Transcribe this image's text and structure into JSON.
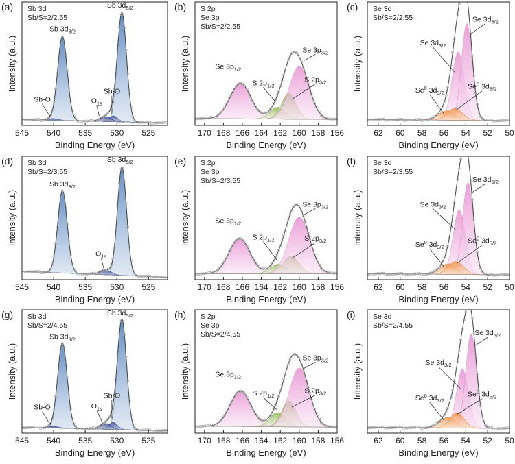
{
  "figure": {
    "description_free": true
  },
  "chart_data": [
    {
      "panel": "(a)",
      "type": "line",
      "element": "Sb 3d",
      "ratio": "Sb/S=2/2.55",
      "xlabel": "Binding Energy (eV)",
      "ylabel": "Intensity (a.u.)",
      "xlim": [
        545,
        522
      ],
      "ylim": [
        0,
        1.0
      ],
      "xticks": [
        545,
        540,
        535,
        530,
        525
      ],
      "series": [
        {
          "name": "Sb 3d3/2",
          "color": "#3f74b8",
          "peaks": [
            {
              "center": 538.6,
              "height": 0.71,
              "width": 0.75
            }
          ]
        },
        {
          "name": "Sb 3d5/2",
          "color": "#3f74b8",
          "peaks": [
            {
              "center": 529.2,
              "height": 0.92,
              "width": 0.72
            }
          ]
        },
        {
          "name": "Sb-O",
          "color": "#2a3b8a",
          "peaks": [
            {
              "center": 540.0,
              "height": 0.015,
              "width": 0.8
            },
            {
              "center": 530.6,
              "height": 0.05,
              "width": 0.7
            }
          ]
        },
        {
          "name": "O1s",
          "color": "#2a3b8a",
          "peaks": [
            {
              "center": 531.8,
              "height": 0.04,
              "width": 0.9
            }
          ]
        }
      ],
      "baseline": [
        0.05,
        0.02
      ],
      "annotations": [
        {
          "text": "Sb 3d",
          "sub": "3/2",
          "x": 538.6,
          "y": 0.8,
          "ax": 538.6,
          "ay": 0.8
        },
        {
          "text": "Sb 3d",
          "sub": "5/2",
          "x": 529.5,
          "y": 1.0,
          "ax": 529.5,
          "ay": 1.0
        },
        {
          "text": "Sb-O",
          "sub": "",
          "x": 541.8,
          "y": 0.2,
          "ax": 540.5,
          "ay": 0.07
        },
        {
          "text": "Sb-O",
          "sub": "",
          "x": 530.8,
          "y": 0.27,
          "ax": 530.8,
          "ay": 0.1
        },
        {
          "text": "O",
          "sub": "1s",
          "x": 533.2,
          "y": 0.19,
          "ax": 532.8,
          "ay": 0.08
        }
      ]
    },
    {
      "panel": "(b)",
      "type": "line",
      "element": "S 2p",
      "element2": "Se 3p",
      "ratio": "Sb/S=2/2.55",
      "xlabel": "Binding Energy (eV)",
      "ylabel": "Intensity (a.u.)",
      "xlim": [
        171,
        156
      ],
      "ylim": [
        0,
        1.0
      ],
      "xticks": [
        170,
        168,
        166,
        164,
        162,
        160,
        158,
        156
      ],
      "series": [
        {
          "name": "Se 3p1/2",
          "color": "#e58bcf",
          "peaks": [
            {
              "center": 166.2,
              "height": 0.3,
              "width": 1.1
            }
          ]
        },
        {
          "name": "S 2p1/2",
          "color": "#8ab04a",
          "peaks": [
            {
              "center": 162.3,
              "height": 0.1,
              "width": 0.8
            }
          ]
        },
        {
          "name": "S 2p3/2",
          "color": "#8ab04a",
          "peaks": [
            {
              "center": 161.1,
              "height": 0.22,
              "width": 0.75
            }
          ]
        },
        {
          "name": "Se 3p3/2",
          "color": "#e58bcf",
          "peaks": [
            {
              "center": 160.0,
              "height": 0.45,
              "width": 1.05
            }
          ]
        }
      ],
      "baseline": [
        0.06,
        0.05
      ],
      "annotations": [
        {
          "text": "Se 3p",
          "sub": "1/2",
          "x": 167.5,
          "y": 0.48,
          "ax": 167.5,
          "ay": 0.48
        },
        {
          "text": "Se 3p",
          "sub": "3/2",
          "x": 158.3,
          "y": 0.62,
          "ax": 159.5,
          "ay": 0.55
        },
        {
          "text": "S 2p",
          "sub": "1/2",
          "x": 163.8,
          "y": 0.34,
          "ax": 162.5,
          "ay": 0.2
        },
        {
          "text": "S 2p",
          "sub": "3/2",
          "x": 158.3,
          "y": 0.37,
          "ax": 160.8,
          "ay": 0.22
        }
      ]
    },
    {
      "panel": "(c)",
      "type": "line",
      "element": "Se 3d",
      "ratio": "Sb/S=2/2.55",
      "xlabel": "Binding Energy (eV)",
      "ylabel": "Intensity (a.u.)",
      "xlim": [
        63,
        50
      ],
      "ylim": [
        0,
        1.0
      ],
      "xticks": [
        62,
        60,
        58,
        56,
        54,
        52,
        50
      ],
      "series": [
        {
          "name": "Se 3d3/2",
          "color": "#e58bcf",
          "peaks": [
            {
              "center": 54.7,
              "height": 0.58,
              "width": 0.55
            }
          ]
        },
        {
          "name": "Se 3d5/2",
          "color": "#e58bcf",
          "peaks": [
            {
              "center": 53.9,
              "height": 0.82,
              "width": 0.5
            }
          ]
        },
        {
          "name": "Se0 3d3/2",
          "color": "#f08a3a",
          "peaks": [
            {
              "center": 55.7,
              "height": 0.08,
              "width": 0.75
            }
          ]
        },
        {
          "name": "Se0 3d5/2",
          "color": "#f08a3a",
          "peaks": [
            {
              "center": 55.0,
              "height": 0.1,
              "width": 0.7
            }
          ]
        }
      ],
      "baseline": [
        0.05,
        0.04
      ],
      "annotations": [
        {
          "text": "Se 3d",
          "sub": "3/2",
          "x": 57.0,
          "y": 0.68,
          "ax": 55.0,
          "ay": 0.45
        },
        {
          "text": "Se 3d",
          "sub": "5/2",
          "x": 52.2,
          "y": 0.88,
          "ax": 53.5,
          "ay": 0.78
        },
        {
          "text": "Se",
          "sup": "0",
          "sub": "3/2",
          "mid": " 3d",
          "x": 57.3,
          "y": 0.28,
          "ax": 56.0,
          "ay": 0.1
        },
        {
          "text": "Se",
          "sup": "0",
          "sub": "5/2",
          "mid": " 3d",
          "x": 52.5,
          "y": 0.31,
          "ax": 54.9,
          "ay": 0.13
        }
      ]
    },
    {
      "panel": "(d)",
      "type": "line",
      "element": "Sb 3d",
      "ratio": "Sb/S=2/3.55",
      "xlabel": "Binding Energy (eV)",
      "ylabel": "Intensity (a.u.)",
      "xlim": [
        545,
        522
      ],
      "ylim": [
        0,
        1.0
      ],
      "xticks": [
        545,
        540,
        535,
        530,
        525
      ],
      "series": [
        {
          "name": "Sb 3d3/2",
          "color": "#3f74b8",
          "peaks": [
            {
              "center": 538.6,
              "height": 0.7,
              "width": 0.75
            }
          ]
        },
        {
          "name": "Sb 3d5/2",
          "color": "#3f74b8",
          "peaks": [
            {
              "center": 529.2,
              "height": 0.92,
              "width": 0.72
            }
          ]
        },
        {
          "name": "O1s",
          "color": "#2a3b8a",
          "peaks": [
            {
              "center": 531.8,
              "height": 0.04,
              "width": 0.9
            }
          ]
        }
      ],
      "baseline": [
        0.07,
        0.02
      ],
      "annotations": [
        {
          "text": "Sb 3d",
          "sub": "3/2",
          "x": 538.6,
          "y": 0.79,
          "ax": 538.6,
          "ay": 0.79
        },
        {
          "text": "Sb 3d",
          "sub": "5/2",
          "x": 529.5,
          "y": 1.0,
          "ax": 529.5,
          "ay": 1.0
        },
        {
          "text": "O",
          "sub": "1s",
          "x": 532.5,
          "y": 0.2,
          "ax": 532.0,
          "ay": 0.08
        }
      ]
    },
    {
      "panel": "(e)",
      "type": "line",
      "element": "S 2p",
      "element2": "Se 3p",
      "ratio": "Sb/S=2/3.55",
      "xlabel": "Binding Energy (eV)",
      "ylabel": "Intensity (a.u.)",
      "xlim": [
        171,
        156
      ],
      "ylim": [
        0,
        1.0
      ],
      "xticks": [
        170,
        168,
        166,
        164,
        162,
        160,
        158,
        156
      ],
      "series": [
        {
          "name": "Se 3p1/2",
          "color": "#e58bcf",
          "peaks": [
            {
              "center": 166.3,
              "height": 0.3,
              "width": 1.1
            }
          ]
        },
        {
          "name": "S 2p1/2",
          "color": "#8ab04a",
          "peaks": [
            {
              "center": 162.2,
              "height": 0.08,
              "width": 0.85
            }
          ]
        },
        {
          "name": "S 2p3/2",
          "color": "#8ab04a",
          "peaks": [
            {
              "center": 160.9,
              "height": 0.15,
              "width": 0.85
            }
          ]
        },
        {
          "name": "Se 3p3/2",
          "color": "#e58bcf",
          "peaks": [
            {
              "center": 160.0,
              "height": 0.48,
              "width": 1.1
            }
          ]
        }
      ],
      "baseline": [
        0.05,
        0.05
      ],
      "annotations": [
        {
          "text": "Se 3p",
          "sub": "1/2",
          "x": 167.5,
          "y": 0.48,
          "ax": 167.5,
          "ay": 0.48
        },
        {
          "text": "Se 3p",
          "sub": "3/2",
          "x": 158.3,
          "y": 0.62,
          "ax": 159.5,
          "ay": 0.55
        },
        {
          "text": "S 2p",
          "sub": "1/2",
          "x": 163.8,
          "y": 0.34,
          "ax": 162.3,
          "ay": 0.16
        },
        {
          "text": "S 2p",
          "sub": "3/2",
          "x": 158.3,
          "y": 0.33,
          "ax": 160.8,
          "ay": 0.18
        }
      ]
    },
    {
      "panel": "(f)",
      "type": "line",
      "element": "Se 3d",
      "ratio": "Sb/S=2/3.55",
      "xlabel": "Binding Energy (eV)",
      "ylabel": "Intensity (a.u.)",
      "xlim": [
        63,
        50
      ],
      "ylim": [
        0,
        1.0
      ],
      "xticks": [
        62,
        60,
        58,
        56,
        54,
        52,
        50
      ],
      "series": [
        {
          "name": "Se 3d3/2",
          "color": "#e58bcf",
          "peaks": [
            {
              "center": 54.6,
              "height": 0.55,
              "width": 0.55
            }
          ]
        },
        {
          "name": "Se 3d5/2",
          "color": "#e58bcf",
          "peaks": [
            {
              "center": 53.8,
              "height": 0.78,
              "width": 0.5
            }
          ]
        },
        {
          "name": "Se0 3d3/2",
          "color": "#f08a3a",
          "peaks": [
            {
              "center": 55.6,
              "height": 0.09,
              "width": 0.75
            }
          ]
        },
        {
          "name": "Se0 3d5/2",
          "color": "#f08a3a",
          "peaks": [
            {
              "center": 54.9,
              "height": 0.11,
              "width": 0.7
            }
          ]
        }
      ],
      "baseline": [
        0.05,
        0.04
      ],
      "annotations": [
        {
          "text": "Se 3d",
          "sub": "3/2",
          "x": 57.0,
          "y": 0.62,
          "ax": 54.9,
          "ay": 0.42
        },
        {
          "text": "Se 3d",
          "sub": "5/2",
          "x": 52.2,
          "y": 0.83,
          "ax": 53.4,
          "ay": 0.74
        },
        {
          "text": "Se",
          "sup": "0",
          "sub": "3/2",
          "mid": " 3d",
          "x": 57.3,
          "y": 0.28,
          "ax": 56.0,
          "ay": 0.11
        },
        {
          "text": "Se",
          "sup": "0",
          "sub": "5/2",
          "mid": " 3d",
          "x": 52.5,
          "y": 0.31,
          "ax": 54.8,
          "ay": 0.14
        }
      ]
    },
    {
      "panel": "(g)",
      "type": "line",
      "element": "Sb 3d",
      "ratio": "Sb/S=2/4.55",
      "xlabel": "Binding Energy (eV)",
      "ylabel": "Intensity (a.u.)",
      "xlim": [
        545,
        522
      ],
      "ylim": [
        0,
        1.0
      ],
      "xticks": [
        545,
        540,
        535,
        530,
        525
      ],
      "series": [
        {
          "name": "Sb 3d3/2",
          "color": "#3f74b8",
          "peaks": [
            {
              "center": 538.6,
              "height": 0.72,
              "width": 0.75
            }
          ]
        },
        {
          "name": "Sb 3d5/2",
          "color": "#3f74b8",
          "peaks": [
            {
              "center": 529.2,
              "height": 0.93,
              "width": 0.72
            }
          ]
        },
        {
          "name": "Sb-O",
          "color": "#2a3b8a",
          "peaks": [
            {
              "center": 540.0,
              "height": 0.015,
              "width": 0.8
            },
            {
              "center": 530.6,
              "height": 0.06,
              "width": 0.7
            }
          ]
        },
        {
          "name": "O1s",
          "color": "#2a3b8a",
          "peaks": [
            {
              "center": 531.8,
              "height": 0.05,
              "width": 0.9
            }
          ]
        }
      ],
      "baseline": [
        0.05,
        0.02
      ],
      "annotations": [
        {
          "text": "Sb 3d",
          "sub": "3/2",
          "x": 538.6,
          "y": 0.8,
          "ax": 538.6,
          "ay": 0.8
        },
        {
          "text": "Sb 3d",
          "sub": "5/2",
          "x": 529.5,
          "y": 1.0,
          "ax": 529.5,
          "ay": 1.0
        },
        {
          "text": "Sb-O",
          "sub": "",
          "x": 541.8,
          "y": 0.2,
          "ax": 540.5,
          "ay": 0.07
        },
        {
          "text": "Sb-O",
          "sub": "",
          "x": 530.8,
          "y": 0.3,
          "ax": 530.8,
          "ay": 0.12
        },
        {
          "text": "O",
          "sub": "1s",
          "x": 533.2,
          "y": 0.21,
          "ax": 532.3,
          "ay": 0.09
        }
      ]
    },
    {
      "panel": "(h)",
      "type": "line",
      "element": "S 2p",
      "element2": "Se 3p",
      "ratio": "Sb/S=2/4.55",
      "xlabel": "Binding Energy (eV)",
      "ylabel": "Intensity (a.u.)",
      "xlim": [
        171,
        156
      ],
      "ylim": [
        0,
        1.0
      ],
      "xticks": [
        170,
        168,
        166,
        164,
        162,
        160,
        158,
        156
      ],
      "series": [
        {
          "name": "Se 3p1/2",
          "color": "#e58bcf",
          "peaks": [
            {
              "center": 166.2,
              "height": 0.3,
              "width": 1.1
            }
          ]
        },
        {
          "name": "S 2p1/2",
          "color": "#8ab04a",
          "peaks": [
            {
              "center": 162.3,
              "height": 0.12,
              "width": 0.8
            }
          ]
        },
        {
          "name": "S 2p3/2",
          "color": "#8ab04a",
          "peaks": [
            {
              "center": 161.1,
              "height": 0.22,
              "width": 0.75
            }
          ]
        },
        {
          "name": "Se 3p3/2",
          "color": "#e58bcf",
          "peaks": [
            {
              "center": 160.0,
              "height": 0.5,
              "width": 1.05
            }
          ]
        }
      ],
      "baseline": [
        0.06,
        0.05
      ],
      "annotations": [
        {
          "text": "Se 3p",
          "sub": "1/2",
          "x": 167.5,
          "y": 0.48,
          "ax": 167.5,
          "ay": 0.48
        },
        {
          "text": "Se 3p",
          "sub": "3/2",
          "x": 158.3,
          "y": 0.62,
          "ax": 159.5,
          "ay": 0.55
        },
        {
          "text": "S 2p",
          "sub": "1/2",
          "x": 163.8,
          "y": 0.32,
          "ax": 162.4,
          "ay": 0.2
        },
        {
          "text": "S 2p",
          "sub": "3/2",
          "x": 158.3,
          "y": 0.34,
          "ax": 160.8,
          "ay": 0.22
        }
      ]
    },
    {
      "panel": "(i)",
      "type": "line",
      "element": "Se 3d",
      "ratio": "Sb/S=2/4.55",
      "xlabel": "Binding Energy (eV)",
      "ylabel": "Intensity (a.u.)",
      "xlim": [
        63,
        50
      ],
      "ylim": [
        0,
        1.0
      ],
      "xticks": [
        62,
        60,
        58,
        56,
        54,
        52,
        50
      ],
      "series": [
        {
          "name": "Se 3d3/2",
          "color": "#e58bcf",
          "peaks": [
            {
              "center": 54.3,
              "height": 0.5,
              "width": 0.55
            }
          ]
        },
        {
          "name": "Se 3d5/2",
          "color": "#e58bcf",
          "peaks": [
            {
              "center": 53.5,
              "height": 0.8,
              "width": 0.5
            }
          ]
        },
        {
          "name": "Se0 3d3/2",
          "color": "#f08a3a",
          "peaks": [
            {
              "center": 55.6,
              "height": 0.09,
              "width": 0.75
            }
          ]
        },
        {
          "name": "Se0 3d5/2",
          "color": "#f08a3a",
          "peaks": [
            {
              "center": 54.8,
              "height": 0.13,
              "width": 0.65
            }
          ]
        }
      ],
      "baseline": [
        0.05,
        0.04
      ],
      "annotations": [
        {
          "text": "Se 3d",
          "sub": "3/2",
          "x": 56.5,
          "y": 0.58,
          "ax": 54.5,
          "ay": 0.38
        },
        {
          "text": "Se 3d",
          "sub": "5/2",
          "x": 52.0,
          "y": 0.83,
          "ax": 53.2,
          "ay": 0.74
        },
        {
          "text": "Se",
          "sup": "0",
          "sub": "3/2",
          "mid": " 3d",
          "x": 57.3,
          "y": 0.28,
          "ax": 56.0,
          "ay": 0.11
        },
        {
          "text": "Se",
          "sup": "0",
          "sub": "5/2",
          "mid": " 3d",
          "x": 52.5,
          "y": 0.31,
          "ax": 54.8,
          "ay": 0.16
        }
      ]
    }
  ]
}
